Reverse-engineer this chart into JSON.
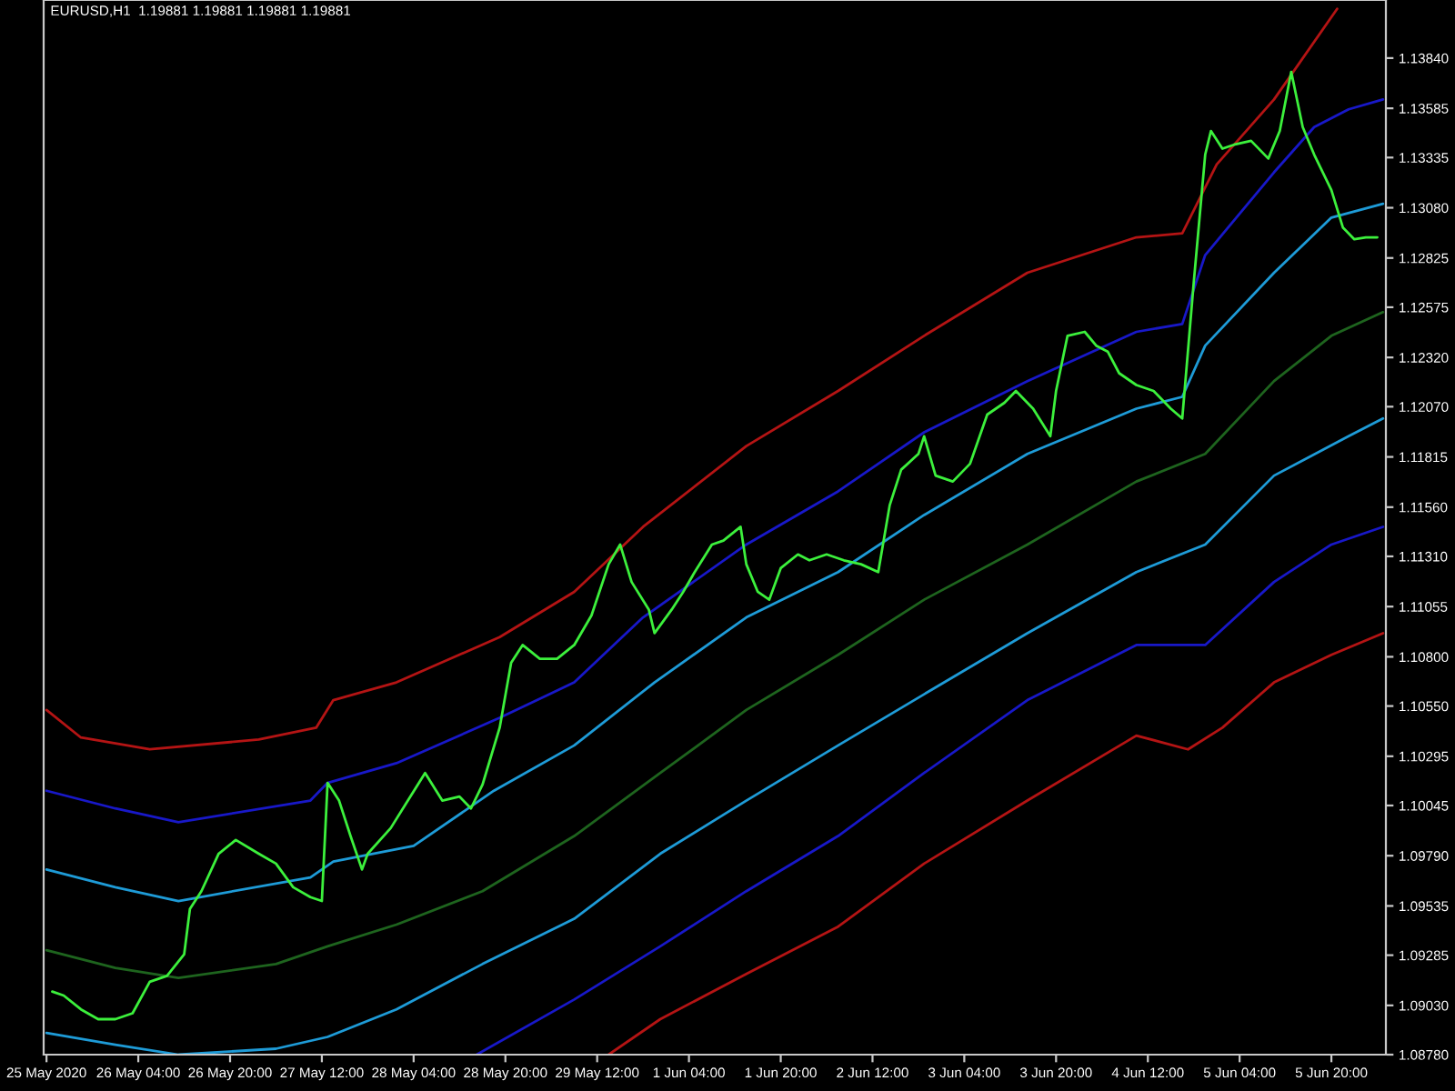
{
  "chart_data": {
    "type": "line",
    "title": "EURUSD,H1  1.19881 1.19881 1.19881 1.19881",
    "categories": [
      "25 May 2020",
      null,
      null,
      null,
      null,
      null,
      null,
      null,
      null,
      null,
      null,
      null,
      null,
      null,
      null,
      null,
      "26 May 04:00",
      null,
      null,
      null,
      null,
      null,
      null,
      null,
      null,
      null,
      null,
      null,
      null,
      null,
      null,
      null,
      "26 May 20:00",
      null,
      null,
      null,
      null,
      null,
      null,
      null,
      null,
      null,
      null,
      null,
      null,
      null,
      null,
      null,
      "27 May 12:00",
      null,
      null,
      null,
      null,
      null,
      null,
      null,
      null,
      null,
      null,
      null,
      null,
      null,
      null,
      null,
      "28 May 04:00",
      null,
      null,
      null,
      null,
      null,
      null,
      null,
      null,
      null,
      null,
      null,
      null,
      null,
      null,
      null,
      "28 May 20:00",
      null,
      null,
      null,
      null,
      null,
      null,
      null,
      null,
      null,
      null,
      null,
      null,
      null,
      null,
      null,
      "29 May 12:00",
      null,
      null,
      null,
      null,
      null,
      null,
      null,
      null,
      null,
      null,
      null,
      null,
      null,
      null,
      null,
      "1 Jun 04:00",
      null,
      null,
      null,
      null,
      null,
      null,
      null,
      null,
      null,
      null,
      null,
      null,
      null,
      null,
      null,
      "1 Jun 20:00",
      null,
      null,
      null,
      null,
      null,
      null,
      null,
      null,
      null,
      null,
      null,
      null,
      null,
      null,
      null,
      "2 Jun 12:00",
      null,
      null,
      null,
      null,
      null,
      null,
      null,
      null,
      null,
      null,
      null,
      null,
      null,
      null,
      null,
      "3 Jun 04:00",
      null,
      null,
      null,
      null,
      null,
      null,
      null,
      null,
      null,
      null,
      null,
      null,
      null,
      null,
      null,
      "3 Jun 20:00",
      null,
      null,
      null,
      null,
      null,
      null,
      null,
      null,
      null,
      null,
      null,
      null,
      null,
      null,
      null,
      "4 Jun 12:00",
      null,
      null,
      null,
      null,
      null,
      null,
      null,
      null,
      null,
      null,
      null,
      null,
      null,
      null,
      null,
      "5 Jun 04:00",
      null,
      null,
      null,
      null,
      null,
      null,
      null,
      null,
      null,
      null,
      null,
      null,
      null,
      null,
      null,
      "5 Jun 20:00",
      null,
      null,
      null,
      null,
      null,
      null,
      null,
      null,
      null
    ],
    "ylim": [
      1.0878,
      1.14135
    ],
    "yticks": [
      {
        "value": 1.0878,
        "label": "1.08780"
      },
      {
        "value": 1.0903,
        "label": "1.09030"
      },
      {
        "value": 1.09285,
        "label": "1.09285"
      },
      {
        "value": 1.09535,
        "label": "1.09535"
      },
      {
        "value": 1.0979,
        "label": "1.09790"
      },
      {
        "value": 1.10045,
        "label": "1.10045"
      },
      {
        "value": 1.10295,
        "label": "1.10295"
      },
      {
        "value": 1.1055,
        "label": "1.10550"
      },
      {
        "value": 1.108,
        "label": "1.10800"
      },
      {
        "value": 1.11055,
        "label": "1.11055"
      },
      {
        "value": 1.1131,
        "label": "1.11310"
      },
      {
        "value": 1.1156,
        "label": "1.11560"
      },
      {
        "value": 1.11815,
        "label": "1.11815"
      },
      {
        "value": 1.1207,
        "label": "1.12070"
      },
      {
        "value": 1.1232,
        "label": "1.12320"
      },
      {
        "value": 1.12575,
        "label": "1.12575"
      },
      {
        "value": 1.12825,
        "label": "1.12825"
      },
      {
        "value": 1.1308,
        "label": "1.13080"
      },
      {
        "value": 1.13335,
        "label": "1.13335"
      },
      {
        "value": 1.13585,
        "label": "1.13585"
      },
      {
        "value": 1.1384,
        "label": "1.13840"
      }
    ],
    "grid": false,
    "marker": "none",
    "line_style": "solid",
    "series": [
      {
        "color": "#b41414",
        "values": [
          1.1053,
          null,
          null,
          null,
          null,
          null,
          1.1039,
          null,
          null,
          null,
          null,
          null,
          null,
          null,
          null,
          null,
          null,
          null,
          1.1033,
          null,
          null,
          null,
          null,
          null,
          null,
          null,
          null,
          null,
          null,
          null,
          null,
          null,
          null,
          null,
          null,
          null,
          null,
          1.1038,
          null,
          null,
          null,
          null,
          null,
          null,
          null,
          null,
          null,
          1.1044,
          null,
          null,
          1.1058,
          null,
          null,
          null,
          null,
          null,
          null,
          null,
          null,
          null,
          null,
          1.1067,
          null,
          null,
          null,
          null,
          null,
          null,
          null,
          null,
          null,
          null,
          null,
          null,
          null,
          null,
          null,
          null,
          null,
          1.109,
          null,
          null,
          null,
          null,
          null,
          null,
          null,
          null,
          null,
          null,
          null,
          null,
          1.1113,
          null,
          null,
          null,
          null,
          null,
          null,
          null,
          null,
          null,
          null,
          null,
          1.1146,
          null,
          null,
          null,
          null,
          null,
          null,
          null,
          null,
          null,
          null,
          null,
          null,
          null,
          null,
          null,
          null,
          null,
          1.1187,
          null,
          null,
          null,
          null,
          null,
          null,
          null,
          null,
          null,
          null,
          null,
          null,
          null,
          null,
          null,
          1.1215,
          null,
          null,
          null,
          null,
          null,
          null,
          null,
          null,
          null,
          null,
          null,
          null,
          null,
          null,
          1.1243,
          null,
          null,
          null,
          null,
          null,
          null,
          null,
          null,
          null,
          null,
          null,
          null,
          null,
          null,
          null,
          null,
          null,
          1.1275,
          null,
          null,
          null,
          null,
          null,
          null,
          null,
          null,
          null,
          null,
          null,
          null,
          null,
          null,
          null,
          null,
          null,
          null,
          1.1293,
          null,
          null,
          null,
          null,
          null,
          null,
          null,
          1.1295,
          null,
          null,
          null,
          null,
          null,
          1.133,
          null,
          null,
          null,
          null,
          null,
          null,
          null,
          null,
          null,
          1.1363,
          null,
          null,
          null,
          null,
          null,
          null,
          null,
          null,
          null,
          null,
          1.1409,
          null,
          null,
          null,
          null,
          null,
          null,
          null,
          null
        ]
      },
      {
        "color": "#1818c8",
        "values": [
          1.1012,
          null,
          null,
          null,
          null,
          null,
          null,
          null,
          null,
          null,
          null,
          null,
          1.1003,
          null,
          null,
          null,
          null,
          null,
          null,
          null,
          null,
          null,
          null,
          1.0996,
          null,
          null,
          null,
          null,
          null,
          null,
          null,
          null,
          null,
          null,
          null,
          null,
          null,
          null,
          null,
          null,
          null,
          null,
          null,
          null,
          null,
          null,
          1.1007,
          null,
          null,
          1.1016,
          null,
          null,
          null,
          null,
          null,
          null,
          null,
          null,
          null,
          null,
          null,
          1.1026,
          null,
          null,
          null,
          null,
          null,
          null,
          null,
          null,
          null,
          null,
          null,
          null,
          null,
          null,
          null,
          null,
          null,
          1.1049,
          null,
          null,
          null,
          null,
          null,
          null,
          null,
          null,
          null,
          null,
          null,
          null,
          1.1067,
          null,
          null,
          null,
          null,
          null,
          null,
          null,
          null,
          null,
          null,
          null,
          1.11,
          null,
          null,
          null,
          null,
          null,
          null,
          null,
          null,
          null,
          null,
          null,
          null,
          null,
          null,
          null,
          null,
          null,
          1.1137,
          null,
          null,
          null,
          null,
          null,
          null,
          null,
          null,
          null,
          null,
          null,
          null,
          null,
          null,
          null,
          1.1164,
          null,
          null,
          null,
          null,
          null,
          null,
          null,
          null,
          null,
          null,
          null,
          null,
          null,
          null,
          1.1194,
          null,
          null,
          null,
          null,
          null,
          null,
          null,
          null,
          null,
          null,
          null,
          null,
          null,
          null,
          null,
          null,
          null,
          1.122,
          null,
          null,
          null,
          null,
          null,
          null,
          null,
          null,
          null,
          null,
          null,
          null,
          null,
          null,
          null,
          null,
          null,
          null,
          1.1245,
          null,
          null,
          null,
          null,
          null,
          null,
          null,
          1.1249,
          null,
          null,
          null,
          1.1284,
          null,
          null,
          null,
          null,
          null,
          null,
          null,
          null,
          null,
          null,
          null,
          1.1326,
          null,
          null,
          null,
          null,
          null,
          null,
          1.1349,
          null,
          null,
          null,
          null,
          null,
          1.1358,
          null,
          null,
          null,
          null,
          null,
          1.1363
        ]
      },
      {
        "color": "#1e9bd7",
        "values": [
          1.0972,
          null,
          null,
          null,
          null,
          null,
          null,
          null,
          null,
          null,
          null,
          null,
          1.0963,
          null,
          null,
          null,
          null,
          null,
          null,
          null,
          null,
          null,
          null,
          1.0956,
          null,
          null,
          null,
          null,
          null,
          null,
          null,
          null,
          null,
          null,
          null,
          null,
          null,
          null,
          null,
          null,
          null,
          null,
          null,
          null,
          null,
          null,
          1.0968,
          null,
          null,
          null,
          1.0976,
          null,
          null,
          null,
          null,
          null,
          null,
          null,
          null,
          null,
          null,
          null,
          null,
          null,
          1.0984,
          null,
          null,
          null,
          null,
          null,
          null,
          null,
          null,
          null,
          null,
          null,
          null,
          null,
          1.1012,
          null,
          null,
          null,
          null,
          null,
          null,
          null,
          null,
          null,
          null,
          null,
          null,
          null,
          1.1035,
          null,
          null,
          null,
          null,
          null,
          null,
          null,
          null,
          null,
          null,
          null,
          null,
          null,
          1.1067,
          null,
          null,
          null,
          null,
          null,
          null,
          null,
          null,
          null,
          null,
          null,
          null,
          null,
          null,
          null,
          1.11,
          null,
          null,
          null,
          null,
          null,
          null,
          null,
          null,
          null,
          null,
          null,
          null,
          null,
          null,
          null,
          1.1123,
          null,
          null,
          null,
          null,
          null,
          null,
          null,
          null,
          null,
          null,
          null,
          null,
          null,
          null,
          1.1152,
          null,
          null,
          null,
          null,
          null,
          null,
          null,
          null,
          null,
          null,
          null,
          null,
          null,
          null,
          null,
          null,
          null,
          1.1183,
          null,
          null,
          null,
          null,
          null,
          null,
          null,
          null,
          null,
          null,
          null,
          null,
          null,
          null,
          null,
          null,
          null,
          null,
          1.1206,
          null,
          null,
          null,
          null,
          null,
          null,
          null,
          1.1212,
          null,
          null,
          null,
          1.1238,
          null,
          null,
          null,
          null,
          null,
          null,
          null,
          null,
          null,
          null,
          null,
          1.1275,
          null,
          null,
          null,
          null,
          null,
          null,
          null,
          null,
          null,
          1.1303,
          null,
          null,
          null,
          null,
          null,
          null,
          null,
          null,
          1.131
        ]
      },
      {
        "color": "#1e641e",
        "values": [
          1.0931,
          null,
          null,
          null,
          null,
          null,
          null,
          null,
          null,
          null,
          null,
          null,
          1.0922,
          null,
          null,
          null,
          null,
          null,
          null,
          null,
          null,
          null,
          null,
          1.0917,
          null,
          null,
          null,
          null,
          null,
          null,
          null,
          null,
          null,
          null,
          null,
          null,
          null,
          null,
          null,
          null,
          1.0924,
          null,
          null,
          null,
          null,
          null,
          null,
          null,
          null,
          1.0933,
          null,
          null,
          null,
          null,
          null,
          null,
          null,
          null,
          null,
          null,
          null,
          1.0944,
          null,
          null,
          null,
          null,
          null,
          null,
          null,
          null,
          null,
          null,
          null,
          null,
          null,
          null,
          1.0961,
          null,
          null,
          null,
          null,
          null,
          null,
          null,
          null,
          null,
          null,
          null,
          null,
          null,
          null,
          null,
          1.0989,
          null,
          null,
          null,
          null,
          null,
          null,
          null,
          null,
          null,
          null,
          null,
          null,
          null,
          null,
          1.1021,
          null,
          null,
          null,
          null,
          null,
          null,
          null,
          null,
          null,
          null,
          null,
          null,
          null,
          null,
          1.1053,
          null,
          null,
          null,
          null,
          null,
          null,
          null,
          null,
          null,
          null,
          null,
          null,
          null,
          null,
          null,
          1.1081,
          null,
          null,
          null,
          null,
          null,
          null,
          null,
          null,
          null,
          null,
          null,
          null,
          null,
          null,
          1.1109,
          null,
          null,
          null,
          null,
          null,
          null,
          null,
          null,
          null,
          null,
          null,
          null,
          null,
          null,
          null,
          null,
          null,
          1.1137,
          null,
          null,
          null,
          null,
          null,
          null,
          null,
          null,
          null,
          null,
          null,
          null,
          null,
          null,
          null,
          null,
          null,
          null,
          1.1169,
          null,
          null,
          null,
          null,
          null,
          null,
          null,
          null,
          null,
          null,
          null,
          1.1183,
          null,
          null,
          null,
          null,
          null,
          null,
          null,
          null,
          null,
          null,
          null,
          1.122,
          null,
          null,
          null,
          null,
          null,
          null,
          null,
          null,
          null,
          1.1243,
          null,
          null,
          null,
          null,
          null,
          null,
          null,
          null,
          1.1255
        ]
      },
      {
        "color": "#1e9bd7",
        "values": [
          1.0889,
          null,
          null,
          null,
          null,
          null,
          null,
          null,
          null,
          null,
          null,
          null,
          1.0883,
          null,
          null,
          null,
          null,
          null,
          null,
          null,
          null,
          null,
          null,
          1.0878,
          null,
          null,
          null,
          null,
          null,
          null,
          null,
          null,
          null,
          null,
          null,
          null,
          null,
          null,
          null,
          null,
          1.0881,
          null,
          null,
          null,
          null,
          null,
          null,
          null,
          null,
          1.0887,
          null,
          null,
          null,
          null,
          null,
          null,
          null,
          null,
          null,
          null,
          null,
          1.0901,
          null,
          null,
          null,
          null,
          null,
          null,
          null,
          null,
          null,
          null,
          null,
          null,
          null,
          null,
          1.0924,
          null,
          null,
          null,
          null,
          null,
          null,
          null,
          null,
          null,
          null,
          null,
          null,
          null,
          null,
          null,
          1.0947,
          null,
          null,
          null,
          null,
          null,
          null,
          null,
          null,
          null,
          null,
          null,
          null,
          null,
          null,
          1.098,
          null,
          null,
          null,
          null,
          null,
          null,
          null,
          null,
          null,
          null,
          null,
          null,
          null,
          null,
          1.1007,
          null,
          null,
          null,
          null,
          null,
          null,
          null,
          null,
          null,
          null,
          null,
          null,
          null,
          null,
          null,
          1.1035,
          null,
          null,
          null,
          null,
          null,
          null,
          null,
          null,
          null,
          null,
          null,
          null,
          null,
          null,
          1.1061,
          null,
          null,
          null,
          null,
          null,
          null,
          null,
          null,
          null,
          null,
          null,
          null,
          null,
          null,
          null,
          null,
          null,
          1.1092,
          null,
          null,
          null,
          null,
          null,
          null,
          null,
          null,
          null,
          null,
          null,
          null,
          null,
          null,
          null,
          null,
          null,
          null,
          1.1123,
          null,
          null,
          null,
          null,
          null,
          null,
          null,
          null,
          null,
          null,
          null,
          1.1137,
          null,
          null,
          null,
          null,
          null,
          null,
          null,
          null,
          null,
          null,
          null,
          1.1172,
          null,
          null,
          null,
          null,
          null,
          null,
          null,
          null,
          null,
          null,
          null,
          null,
          1.1192,
          null,
          null,
          null,
          null,
          null,
          1.1201
        ]
      },
      {
        "color": "#1818c8",
        "values": [
          null,
          null,
          null,
          null,
          null,
          null,
          null,
          null,
          null,
          null,
          null,
          null,
          null,
          null,
          null,
          null,
          null,
          null,
          null,
          null,
          null,
          null,
          null,
          null,
          null,
          null,
          null,
          null,
          null,
          null,
          null,
          null,
          null,
          null,
          null,
          null,
          null,
          null,
          null,
          null,
          null,
          null,
          null,
          null,
          null,
          null,
          null,
          null,
          null,
          null,
          null,
          null,
          null,
          null,
          null,
          null,
          null,
          null,
          null,
          null,
          null,
          null,
          null,
          null,
          null,
          null,
          null,
          null,
          null,
          null,
          null,
          null,
          null,
          null,
          null,
          1.0878,
          null,
          null,
          null,
          null,
          null,
          null,
          null,
          null,
          null,
          null,
          null,
          null,
          null,
          null,
          null,
          null,
          1.0906,
          null,
          null,
          null,
          null,
          null,
          null,
          null,
          null,
          null,
          null,
          null,
          null,
          null,
          null,
          1.0933,
          null,
          null,
          null,
          null,
          null,
          null,
          null,
          null,
          null,
          null,
          null,
          null,
          null,
          null,
          1.0961,
          null,
          null,
          null,
          null,
          null,
          null,
          null,
          null,
          null,
          null,
          null,
          null,
          null,
          null,
          null,
          1.0989,
          null,
          null,
          null,
          null,
          null,
          null,
          null,
          null,
          null,
          null,
          null,
          null,
          null,
          null,
          1.1021,
          null,
          null,
          null,
          null,
          null,
          null,
          null,
          null,
          null,
          null,
          null,
          null,
          null,
          null,
          null,
          null,
          null,
          1.1058,
          null,
          null,
          null,
          null,
          null,
          null,
          null,
          null,
          null,
          null,
          null,
          null,
          null,
          null,
          null,
          null,
          null,
          null,
          1.1086,
          null,
          null,
          null,
          null,
          null,
          null,
          null,
          null,
          null,
          null,
          null,
          1.1086,
          null,
          null,
          null,
          null,
          null,
          null,
          null,
          null,
          null,
          null,
          null,
          1.1118,
          null,
          null,
          null,
          null,
          null,
          null,
          null,
          null,
          null,
          1.1137,
          null,
          null,
          null,
          null,
          null,
          null,
          null,
          null,
          1.1146
        ]
      },
      {
        "color": "#b41414",
        "values": [
          null,
          null,
          null,
          null,
          null,
          null,
          null,
          null,
          null,
          null,
          null,
          null,
          null,
          null,
          null,
          null,
          null,
          null,
          null,
          null,
          null,
          null,
          null,
          null,
          null,
          null,
          null,
          null,
          null,
          null,
          null,
          null,
          null,
          null,
          null,
          null,
          null,
          null,
          null,
          null,
          null,
          null,
          null,
          null,
          null,
          null,
          null,
          null,
          null,
          null,
          null,
          null,
          null,
          null,
          null,
          null,
          null,
          null,
          null,
          null,
          null,
          null,
          null,
          null,
          null,
          null,
          null,
          null,
          null,
          null,
          null,
          null,
          null,
          null,
          null,
          null,
          null,
          null,
          null,
          null,
          null,
          null,
          null,
          null,
          null,
          null,
          null,
          null,
          null,
          null,
          null,
          null,
          null,
          null,
          null,
          null,
          null,
          null,
          1.0878,
          null,
          null,
          null,
          null,
          null,
          null,
          null,
          null,
          1.0896,
          null,
          null,
          null,
          null,
          null,
          null,
          null,
          null,
          null,
          null,
          null,
          null,
          null,
          null,
          1.0919,
          null,
          null,
          null,
          null,
          null,
          null,
          null,
          null,
          null,
          null,
          null,
          null,
          null,
          null,
          null,
          1.0943,
          null,
          null,
          null,
          null,
          null,
          null,
          null,
          null,
          null,
          null,
          null,
          null,
          null,
          null,
          1.0975,
          null,
          null,
          null,
          null,
          null,
          null,
          null,
          null,
          null,
          null,
          null,
          null,
          null,
          null,
          null,
          null,
          null,
          1.1007,
          null,
          null,
          null,
          null,
          null,
          null,
          null,
          null,
          null,
          null,
          null,
          null,
          null,
          null,
          null,
          null,
          null,
          null,
          1.104,
          null,
          null,
          null,
          null,
          null,
          null,
          null,
          null,
          1.1033,
          null,
          null,
          null,
          null,
          null,
          1.1044,
          null,
          null,
          null,
          null,
          null,
          null,
          null,
          null,
          1.1067,
          null,
          null,
          null,
          null,
          null,
          null,
          null,
          null,
          null,
          1.1081,
          null,
          null,
          null,
          null,
          null,
          null,
          null,
          null,
          1.1092
        ]
      },
      {
        "color": "#3cf03c",
        "values": [
          null,
          1.091,
          null,
          1.0908,
          null,
          null,
          1.0901,
          null,
          null,
          1.0896,
          null,
          null,
          1.0896,
          null,
          null,
          1.0899,
          null,
          null,
          1.0915,
          null,
          null,
          1.0918,
          null,
          null,
          1.0929,
          1.0952,
          null,
          1.0961,
          null,
          null,
          1.098,
          null,
          null,
          1.0987,
          null,
          null,
          null,
          1.098,
          null,
          null,
          1.0975,
          null,
          null,
          1.0963,
          null,
          null,
          1.0958,
          null,
          1.0956,
          1.1016,
          null,
          1.1007,
          null,
          1.0989,
          null,
          1.0972,
          1.098,
          null,
          null,
          null,
          1.0993,
          null,
          null,
          1.1007,
          null,
          null,
          1.1021,
          null,
          null,
          1.1007,
          null,
          null,
          1.1009,
          null,
          1.1003,
          null,
          1.1015,
          null,
          null,
          1.1044,
          null,
          1.1077,
          null,
          1.1086,
          null,
          null,
          1.1079,
          null,
          null,
          1.1079,
          null,
          null,
          1.1086,
          null,
          null,
          1.1101,
          null,
          null,
          1.1127,
          null,
          1.1137,
          null,
          1.1118,
          null,
          null,
          1.1104,
          1.1092,
          null,
          null,
          1.1104,
          null,
          1.1113,
          null,
          1.1123,
          null,
          null,
          1.1137,
          null,
          1.1139,
          null,
          null,
          1.1146,
          1.1127,
          null,
          1.1113,
          null,
          1.1109,
          null,
          1.1125,
          null,
          null,
          1.1132,
          null,
          1.1129,
          null,
          null,
          1.1132,
          null,
          null,
          1.1129,
          null,
          null,
          1.1127,
          null,
          null,
          1.1123,
          null,
          1.1157,
          null,
          1.1175,
          null,
          null,
          1.1183,
          1.1192,
          null,
          1.1172,
          null,
          null,
          1.1169,
          null,
          null,
          1.1178,
          null,
          null,
          1.1203,
          null,
          null,
          1.1209,
          null,
          1.1215,
          null,
          null,
          1.1206,
          null,
          null,
          1.1192,
          1.1215,
          null,
          1.1243,
          null,
          null,
          1.1245,
          null,
          1.1238,
          null,
          1.1235,
          null,
          1.1224,
          null,
          null,
          1.1218,
          null,
          null,
          1.1215,
          null,
          null,
          1.1206,
          null,
          1.1201,
          null,
          1.127,
          null,
          1.1335,
          1.1347,
          null,
          1.1338,
          null,
          1.134,
          null,
          null,
          1.1342,
          null,
          null,
          1.1333,
          null,
          1.1347,
          null,
          1.1377,
          null,
          1.1349,
          null,
          1.1335,
          null,
          null,
          1.1317,
          null,
          1.1298,
          null,
          1.1292,
          null,
          1.1293,
          null,
          1.1293,
          null
        ]
      }
    ]
  }
}
